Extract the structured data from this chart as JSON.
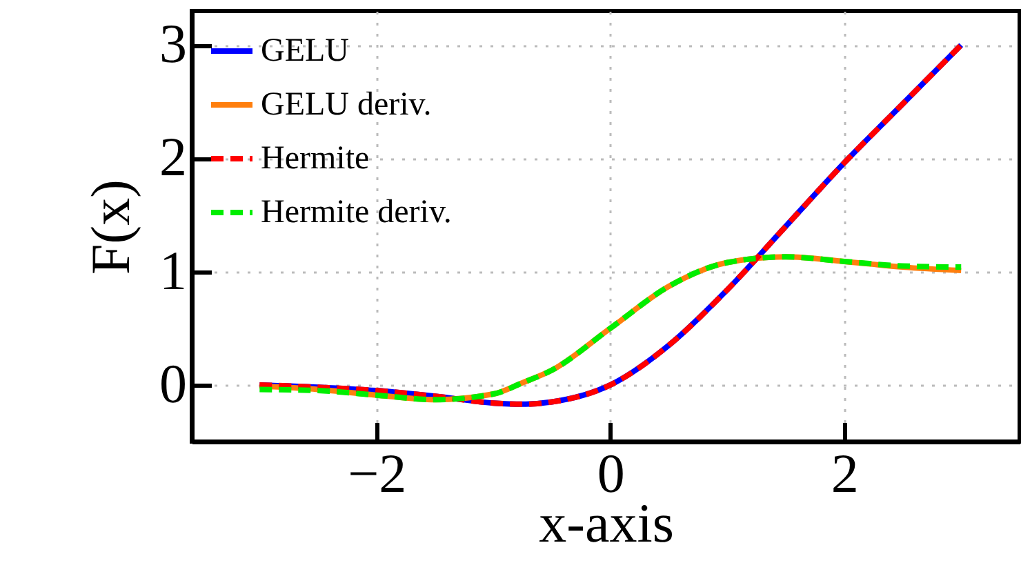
{
  "chart_data": {
    "type": "line",
    "xlabel": "x-axis",
    "ylabel": "F(x)",
    "x": [
      -3,
      -2.5,
      -2,
      -1.5,
      -1,
      -0.75,
      -0.5,
      0,
      0.5,
      1,
      1.5,
      2,
      2.5,
      3
    ],
    "series": [
      {
        "name": "GELU",
        "color": "#0000ff",
        "line_style": "solid",
        "values": [
          0,
          -0.02,
          -0.05,
          -0.1,
          -0.16,
          -0.17,
          -0.15,
          0,
          0.35,
          0.84,
          1.4,
          1.96,
          2.48,
          3
        ]
      },
      {
        "name": "GELU deriv.",
        "color": "#ff7f0e",
        "line_style": "solid",
        "values": [
          -0.01,
          -0.04,
          -0.09,
          -0.13,
          -0.08,
          0.02,
          0.13,
          0.5,
          0.87,
          1.08,
          1.13,
          1.09,
          1.04,
          1.01
        ]
      },
      {
        "name": "Hermite",
        "color": "#ff0000",
        "line_style": "dashed",
        "values": [
          0,
          -0.02,
          -0.05,
          -0.1,
          -0.16,
          -0.17,
          -0.15,
          0,
          0.35,
          0.84,
          1.4,
          1.96,
          2.48,
          3
        ]
      },
      {
        "name": "Hermite deriv.",
        "color": "#00ee00",
        "line_style": "dashed",
        "values": [
          -0.04,
          -0.05,
          -0.09,
          -0.13,
          -0.08,
          0.02,
          0.13,
          0.5,
          0.87,
          1.08,
          1.13,
          1.09,
          1.05,
          1.04
        ]
      }
    ],
    "xlim": [
      -3.58,
      3.5
    ],
    "ylim": [
      -0.5,
      3.3
    ],
    "xticks": [
      -2,
      0,
      2
    ],
    "yticks": [
      0,
      1,
      2,
      3
    ],
    "grid": true,
    "legend": "top left"
  }
}
